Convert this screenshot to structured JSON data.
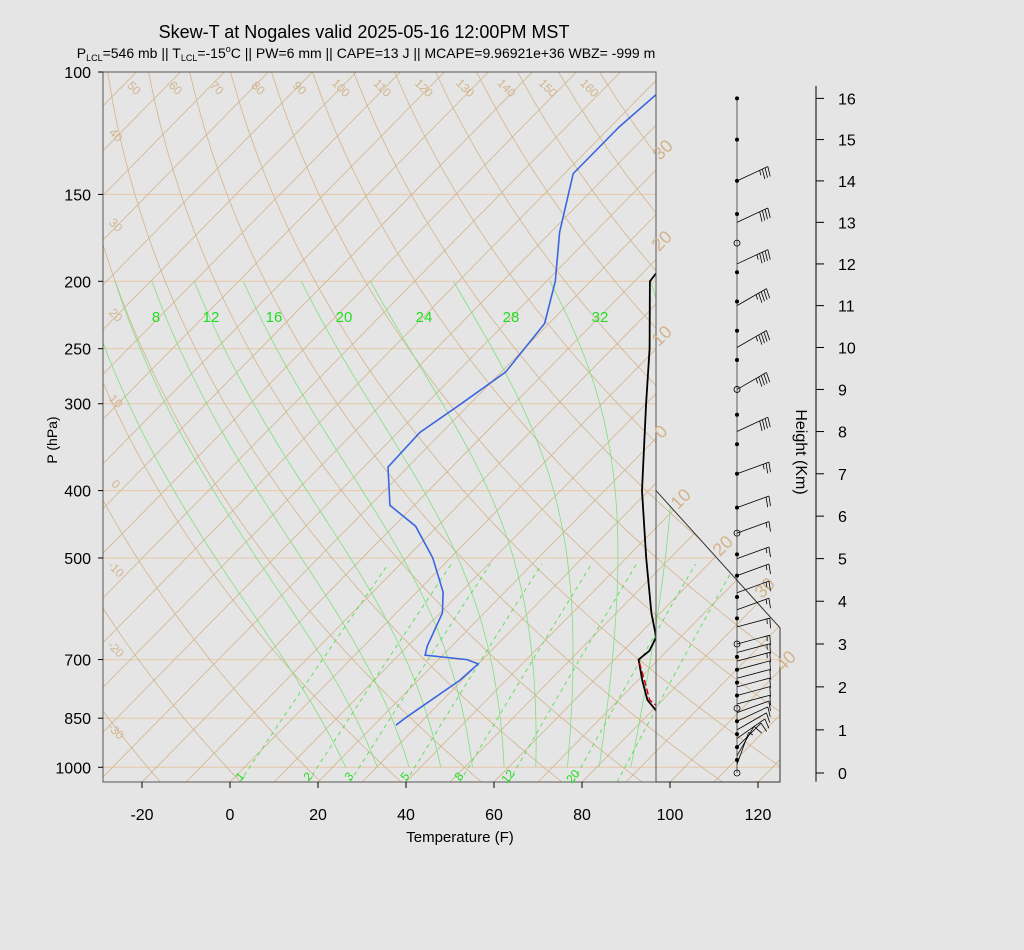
{
  "title": "Skew-T at Nogales valid 2025-05-16 12:00PM MST",
  "subtitle": {
    "plcl_label": "P",
    "plcl_sub": "LCL",
    "plcl_value": "=546 mb || T",
    "tlcl_sub": "LCL",
    "tlcl_value": "=-15",
    "deg": "o",
    "rest": "C || PW=6 mm || CAPE=13 J || MCAPE=9.96921e+36 WBZ= -999 m"
  },
  "colors": {
    "background": "#e5e5e5",
    "title": "#000000",
    "subtitle": "#a0522d",
    "temperature": "#000000",
    "dewpoint": "#3a66e0",
    "parcel": "#cc0000",
    "isotherm": "#d2b48c",
    "isobar": "#e8c8a8",
    "dry_adiabat": "#d2b48c",
    "moist_adiabat": "#7ee07e",
    "mixing_ratio": "#55dd55",
    "mixing_label": "#22dd22"
  },
  "chart_data": {
    "type": "skew-t",
    "xlabel": "Temperature (F)",
    "ylabel": "P (hPa)",
    "y2label": "Height (Km)",
    "x_ticks": [
      "-20",
      "0",
      "20",
      "40",
      "60",
      "80",
      "100",
      "120"
    ],
    "pressure_ticks": [
      {
        "p": 100,
        "label": "100"
      },
      {
        "p": 150,
        "label": "150"
      },
      {
        "p": 200,
        "label": "200"
      },
      {
        "p": 250,
        "label": "250"
      },
      {
        "p": 300,
        "label": "300"
      },
      {
        "p": 400,
        "label": "400"
      },
      {
        "p": 500,
        "label": "500"
      },
      {
        "p": 700,
        "label": "700"
      },
      {
        "p": 850,
        "label": "850"
      },
      {
        "p": 1000,
        "label": "1000"
      }
    ],
    "height_ticks": [
      "0",
      "1",
      "2",
      "3",
      "4",
      "5",
      "6",
      "7",
      "8",
      "9",
      "10",
      "11",
      "12",
      "13",
      "14",
      "15",
      "16"
    ],
    "isotherm_labels": [
      "50",
      "60",
      "70",
      "80",
      "90",
      "100",
      "110",
      "120",
      "130",
      "140",
      "150",
      "160"
    ],
    "dry_adiabat_left_labels": [
      "40",
      "30",
      "20",
      "10",
      "0",
      "-10",
      "-20",
      "-30"
    ],
    "dry_adiabat_right_labels": [
      "30",
      "20",
      "10",
      "0",
      "10",
      "20",
      "30",
      "40"
    ],
    "moist_adiabat_labels": [
      "8",
      "12",
      "16",
      "20",
      "24",
      "28",
      "32"
    ],
    "mixing_ratio_labels": [
      "1",
      "2",
      "3",
      "5",
      "8",
      "12",
      "20"
    ],
    "temperature_profile": [
      {
        "p": 870,
        "t": 89.5
      },
      {
        "p": 850,
        "t": 84.0
      },
      {
        "p": 800,
        "t": 76.5
      },
      {
        "p": 750,
        "t": 71.0
      },
      {
        "p": 700,
        "t": 65.5
      },
      {
        "p": 680,
        "t": 66.0
      },
      {
        "p": 650,
        "t": 64.5
      },
      {
        "p": 600,
        "t": 58.0
      },
      {
        "p": 500,
        "t": 44.5
      },
      {
        "p": 400,
        "t": 28.5
      },
      {
        "p": 300,
        "t": 10.0
      },
      {
        "p": 250,
        "t": -1.5
      },
      {
        "p": 200,
        "t": -16.5
      },
      {
        "p": 180,
        "t": -18.0
      },
      {
        "p": 170,
        "t": -17.5
      },
      {
        "p": 150,
        "t": -17.0
      },
      {
        "p": 130,
        "t": -18.0
      },
      {
        "p": 100,
        "t": -15.0
      }
    ],
    "dewpoint_profile": [
      {
        "p": 870,
        "t": 25.0
      },
      {
        "p": 850,
        "t": 25.5
      },
      {
        "p": 750,
        "t": 29.5
      },
      {
        "p": 710,
        "t": 30.0
      },
      {
        "p": 700,
        "t": 26.5
      },
      {
        "p": 690,
        "t": 16.0
      },
      {
        "p": 670,
        "t": 14.5
      },
      {
        "p": 600,
        "t": 10.5
      },
      {
        "p": 560,
        "t": 6.0
      },
      {
        "p": 500,
        "t": -4.0
      },
      {
        "p": 450,
        "t": -15.0
      },
      {
        "p": 420,
        "t": -25.5
      },
      {
        "p": 370,
        "t": -34.5
      },
      {
        "p": 330,
        "t": -35.0
      },
      {
        "p": 300,
        "t": -32.0
      },
      {
        "p": 270,
        "t": -29.0
      },
      {
        "p": 230,
        "t": -31.0
      },
      {
        "p": 200,
        "t": -38.0
      },
      {
        "p": 170,
        "t": -48.0
      },
      {
        "p": 140,
        "t": -58.0
      },
      {
        "p": 120,
        "t": -58.0
      },
      {
        "p": 100,
        "t": -56.0
      }
    ],
    "parcel_profile": [
      {
        "p": 870,
        "t": 89.5
      },
      {
        "p": 800,
        "t": 77.0
      },
      {
        "p": 750,
        "t": 71.5
      },
      {
        "p": 700,
        "t": 65.5
      }
    ],
    "wind_barbs": [
      {
        "km": 0.2,
        "dir": 200,
        "spd": 5
      },
      {
        "km": 0.4,
        "dir": 210,
        "spd": 10
      },
      {
        "km": 0.6,
        "dir": 225,
        "spd": 10
      },
      {
        "km": 0.8,
        "dir": 235,
        "spd": 10
      },
      {
        "km": 1.0,
        "dir": 240,
        "spd": 10
      },
      {
        "km": 1.2,
        "dir": 245,
        "spd": 10
      },
      {
        "km": 1.4,
        "dir": 250,
        "spd": 10
      },
      {
        "km": 1.6,
        "dir": 255,
        "spd": 10
      },
      {
        "km": 1.8,
        "dir": 255,
        "spd": 10
      },
      {
        "km": 2.0,
        "dir": 255,
        "spd": 10
      },
      {
        "km": 2.2,
        "dir": 255,
        "spd": 10
      },
      {
        "km": 2.4,
        "dir": 255,
        "spd": 10
      },
      {
        "km": 2.6,
        "dir": 255,
        "spd": 15
      },
      {
        "km": 2.8,
        "dir": 255,
        "spd": 15
      },
      {
        "km": 3.0,
        "dir": 255,
        "spd": 15
      },
      {
        "km": 3.4,
        "dir": 255,
        "spd": 15
      },
      {
        "km": 3.8,
        "dir": 250,
        "spd": 15
      },
      {
        "km": 4.2,
        "dir": 250,
        "spd": 15
      },
      {
        "km": 4.6,
        "dir": 250,
        "spd": 15
      },
      {
        "km": 5.0,
        "dir": 250,
        "spd": 15
      },
      {
        "km": 5.6,
        "dir": 250,
        "spd": 15
      },
      {
        "km": 6.2,
        "dir": 250,
        "spd": 20
      },
      {
        "km": 7.0,
        "dir": 250,
        "spd": 25
      },
      {
        "km": 8.0,
        "dir": 245,
        "spd": 40
      },
      {
        "km": 9.0,
        "dir": 240,
        "spd": 45
      },
      {
        "km": 10.0,
        "dir": 240,
        "spd": 45
      },
      {
        "km": 11.0,
        "dir": 240,
        "spd": 45
      },
      {
        "km": 12.0,
        "dir": 245,
        "spd": 45
      },
      {
        "km": 13.0,
        "dir": 245,
        "spd": 40
      },
      {
        "km": 14.0,
        "dir": 245,
        "spd": 35
      }
    ],
    "height_markers_km": [
      0.0,
      0.3,
      0.6,
      0.9,
      1.2,
      1.5,
      1.8,
      2.1,
      2.4,
      2.7,
      3.0,
      3.6,
      4.1,
      4.6,
      5.1,
      5.6,
      6.2,
      7.0,
      7.7,
      8.4,
      9.0,
      9.7,
      10.4,
      11.1,
      11.8,
      12.5,
      13.2,
      14.0,
      15.0,
      16.0
    ]
  }
}
